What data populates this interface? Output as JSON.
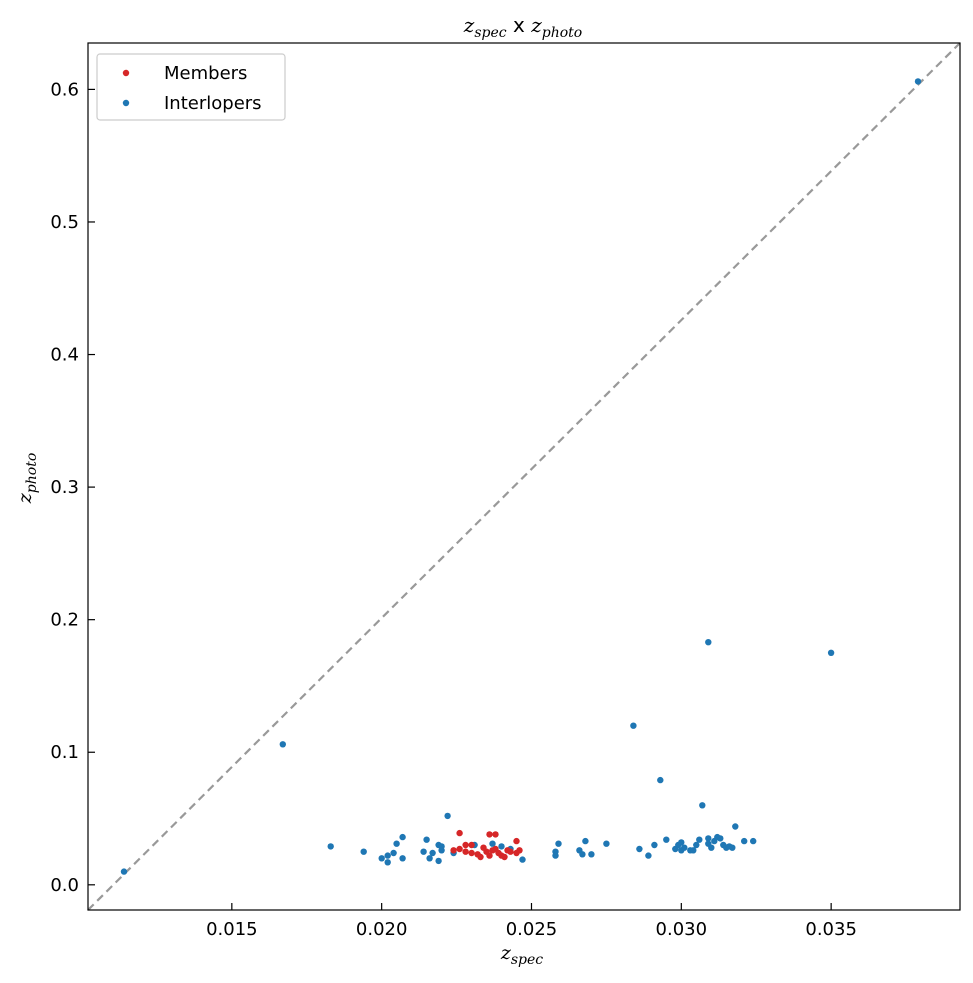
{
  "chart_data": {
    "type": "scatter",
    "title": {
      "main": "z",
      "sub1": "spec",
      "mid": " x ",
      "main2": "z",
      "sub2": "photo"
    },
    "xlabel": {
      "main": "z",
      "sub": "spec"
    },
    "ylabel": {
      "main": "z",
      "sub": "photo"
    },
    "xlim": [
      0.0102,
      0.0393
    ],
    "ylim": [
      -0.019,
      0.635
    ],
    "xticks": [
      0.015,
      0.02,
      0.025,
      0.03,
      0.035
    ],
    "xtick_labels": [
      "0.015",
      "0.020",
      "0.025",
      "0.030",
      "0.035"
    ],
    "yticks": [
      0.0,
      0.1,
      0.2,
      0.3,
      0.4,
      0.5,
      0.6
    ],
    "ytick_labels": [
      "0.0",
      "0.1",
      "0.2",
      "0.3",
      "0.4",
      "0.5",
      "0.6"
    ],
    "grid": false,
    "legend_position": "top-left",
    "reference_line": {
      "style": "dashed",
      "color": "#999999",
      "points": [
        [
          0.0102,
          -0.019
        ],
        [
          0.0393,
          0.635
        ]
      ]
    },
    "series": [
      {
        "name": "Members",
        "color": "#d62728",
        "points": [
          [
            0.0226,
            0.039
          ],
          [
            0.0236,
            0.038
          ],
          [
            0.0238,
            0.038
          ],
          [
            0.0245,
            0.033
          ],
          [
            0.0228,
            0.03
          ],
          [
            0.023,
            0.03
          ],
          [
            0.0234,
            0.028
          ],
          [
            0.0226,
            0.027
          ],
          [
            0.0228,
            0.025
          ],
          [
            0.023,
            0.024
          ],
          [
            0.0232,
            0.023
          ],
          [
            0.0235,
            0.025
          ],
          [
            0.0237,
            0.026
          ],
          [
            0.0238,
            0.027
          ],
          [
            0.0236,
            0.022
          ],
          [
            0.024,
            0.022
          ],
          [
            0.0241,
            0.021
          ],
          [
            0.0243,
            0.025
          ],
          [
            0.0245,
            0.024
          ],
          [
            0.0246,
            0.026
          ],
          [
            0.0233,
            0.021
          ],
          [
            0.0239,
            0.024
          ],
          [
            0.0242,
            0.026
          ],
          [
            0.0224,
            0.026
          ]
        ]
      },
      {
        "name": "Interlopers",
        "color": "#1f77b4",
        "points": [
          [
            0.0379,
            0.606
          ],
          [
            0.0309,
            0.183
          ],
          [
            0.035,
            0.175
          ],
          [
            0.0284,
            0.12
          ],
          [
            0.0167,
            0.106
          ],
          [
            0.0293,
            0.079
          ],
          [
            0.0307,
            0.06
          ],
          [
            0.0222,
            0.052
          ],
          [
            0.0318,
            0.044
          ],
          [
            0.0114,
            0.01
          ],
          [
            0.0183,
            0.029
          ],
          [
            0.0194,
            0.025
          ],
          [
            0.02,
            0.02
          ],
          [
            0.0202,
            0.017
          ],
          [
            0.0202,
            0.022
          ],
          [
            0.0204,
            0.024
          ],
          [
            0.0205,
            0.031
          ],
          [
            0.0207,
            0.036
          ],
          [
            0.0207,
            0.02
          ],
          [
            0.0214,
            0.025
          ],
          [
            0.0215,
            0.034
          ],
          [
            0.0216,
            0.02
          ],
          [
            0.0217,
            0.024
          ],
          [
            0.0219,
            0.018
          ],
          [
            0.0219,
            0.03
          ],
          [
            0.022,
            0.026
          ],
          [
            0.022,
            0.029
          ],
          [
            0.0224,
            0.024
          ],
          [
            0.0231,
            0.03
          ],
          [
            0.0237,
            0.031
          ],
          [
            0.024,
            0.029
          ],
          [
            0.0243,
            0.027
          ],
          [
            0.0247,
            0.019
          ],
          [
            0.0258,
            0.025
          ],
          [
            0.0258,
            0.022
          ],
          [
            0.0259,
            0.031
          ],
          [
            0.0266,
            0.026
          ],
          [
            0.0267,
            0.023
          ],
          [
            0.0268,
            0.033
          ],
          [
            0.027,
            0.023
          ],
          [
            0.0275,
            0.031
          ],
          [
            0.0286,
            0.027
          ],
          [
            0.0289,
            0.022
          ],
          [
            0.0291,
            0.03
          ],
          [
            0.0295,
            0.034
          ],
          [
            0.0298,
            0.027
          ],
          [
            0.0299,
            0.03
          ],
          [
            0.03,
            0.026
          ],
          [
            0.03,
            0.032
          ],
          [
            0.0301,
            0.028
          ],
          [
            0.0303,
            0.026
          ],
          [
            0.0304,
            0.026
          ],
          [
            0.0305,
            0.03
          ],
          [
            0.0306,
            0.034
          ],
          [
            0.0309,
            0.035
          ],
          [
            0.0309,
            0.031
          ],
          [
            0.031,
            0.028
          ],
          [
            0.0311,
            0.033
          ],
          [
            0.0312,
            0.036
          ],
          [
            0.0313,
            0.035
          ],
          [
            0.0314,
            0.03
          ],
          [
            0.0315,
            0.028
          ],
          [
            0.0316,
            0.029
          ],
          [
            0.0317,
            0.028
          ],
          [
            0.0321,
            0.033
          ],
          [
            0.0324,
            0.033
          ]
        ]
      }
    ]
  }
}
